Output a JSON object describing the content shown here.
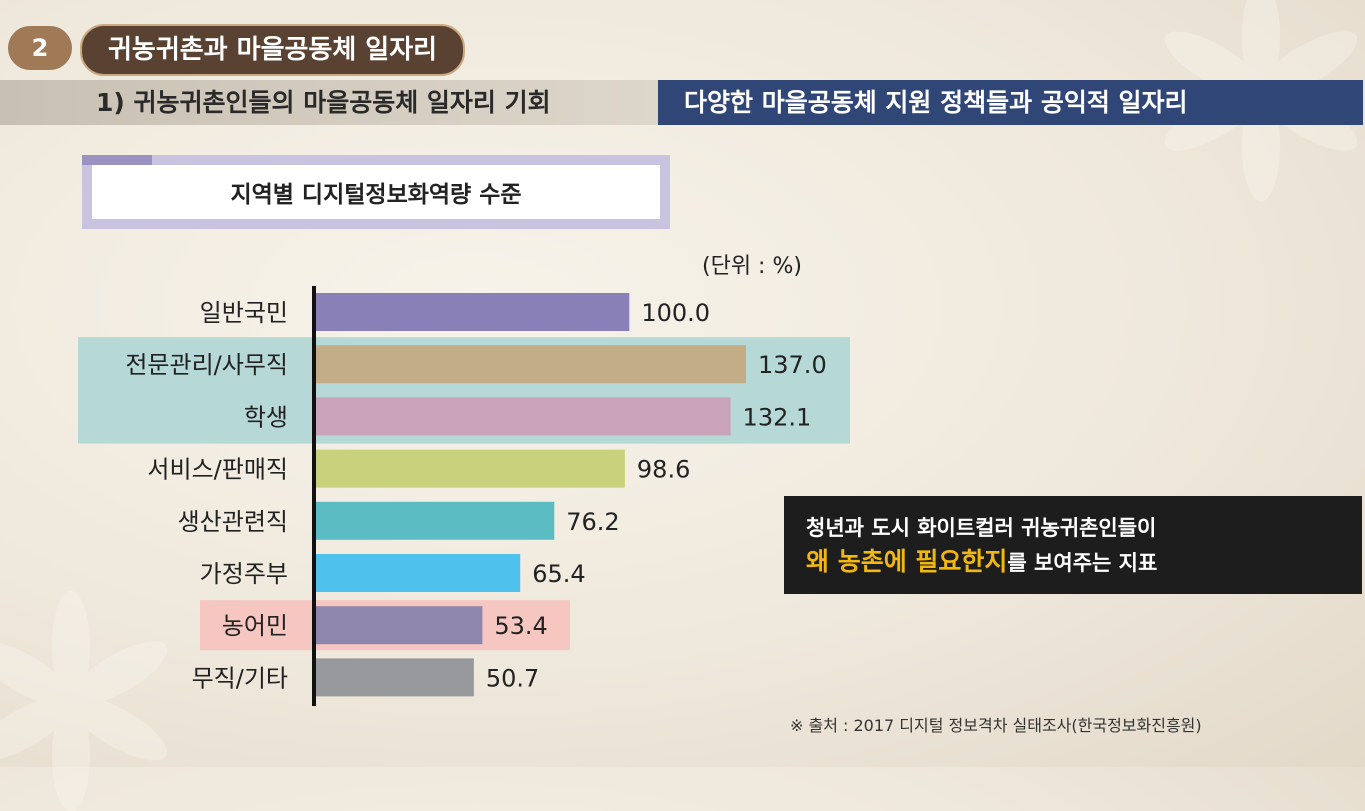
{
  "header": {
    "section_number": "2",
    "section_title": "귀농귀촌과 마을공동체 일자리",
    "subheading": "1) 귀농귀촌인들의 마을공동체 일자리 기회",
    "subheading_right": "다양한 마을공동체 지원 정책들과 공익적 일자리"
  },
  "chart_data": {
    "type": "bar",
    "orientation": "horizontal",
    "title": "지역별 디지털정보화역량 수준",
    "unit": "(단위 : %)",
    "categories": [
      "일반국민",
      "전문관리/사무직",
      "학생",
      "서비스/판매직",
      "생산관련직",
      "가정주부",
      "농어민",
      "무직/기타"
    ],
    "values": [
      100.0,
      137.0,
      132.1,
      98.6,
      76.2,
      65.4,
      53.4,
      50.7
    ],
    "value_labels": [
      "100.0",
      "137.0",
      "132.1",
      "98.6",
      "76.2",
      "65.4",
      "53.4",
      "50.7"
    ],
    "colors": [
      "#8a80b8",
      "#c3ad86",
      "#c8a3b9",
      "#c8d27c",
      "#5cbcc3",
      "#4fc1ed",
      "#8f86ad",
      "#97999d"
    ],
    "highlight_row_color": "#b6d8d6",
    "highlight_farmer_color": "#f6c6c1",
    "grid": false,
    "legend": "none"
  },
  "callout": {
    "line1": "청년과 도시 화이트컬러 귀농귀촌인들이",
    "line2_highlight": "왜 농촌에 필요한지",
    "line2_rest": "를 보여주는 지표"
  },
  "source": "※ 출처 :  2017 디지털 정보격차 실태조사(한국정보화진흥원)"
}
